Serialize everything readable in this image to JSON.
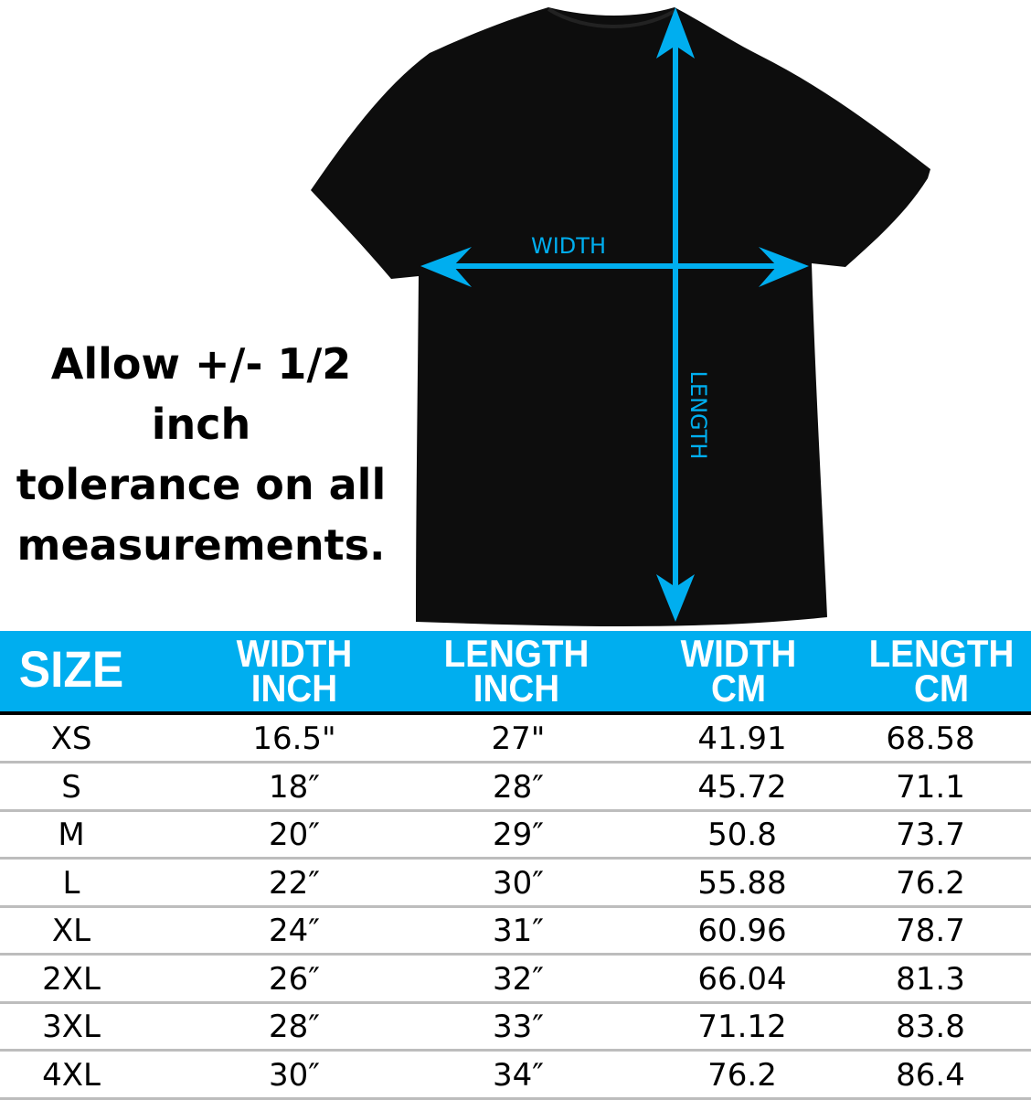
{
  "colors": {
    "accent": "#00AEEF",
    "shirt": "#0d0d0d"
  },
  "diagram": {
    "width_label": "WIDTH",
    "length_label": "LENGTH"
  },
  "note": {
    "lines": [
      "Allow +/- 1/2 inch",
      "tolerance on all",
      "measurements."
    ]
  },
  "table": {
    "headers": [
      [
        "SIZE"
      ],
      [
        "WIDTH",
        "INCH"
      ],
      [
        "LENGTH",
        "INCH"
      ],
      [
        "WIDTH",
        "CM"
      ],
      [
        "LENGTH",
        "CM"
      ]
    ],
    "rows": [
      [
        "XS",
        "16.5\"",
        "27\"",
        "41.91",
        "68.58"
      ],
      [
        "S",
        "18″",
        "28″",
        "45.72",
        "71.1"
      ],
      [
        "M",
        "20″",
        "29″",
        "50.8",
        "73.7"
      ],
      [
        "L",
        "22″",
        "30″",
        "55.88",
        "76.2"
      ],
      [
        "XL",
        "24″",
        "31″",
        "60.96",
        "78.7"
      ],
      [
        "2XL",
        "26″",
        "32″",
        "66.04",
        "81.3"
      ],
      [
        "3XL",
        "28″",
        "33″",
        "71.12",
        "83.8"
      ],
      [
        "4XL",
        "30″",
        "34″",
        "76.2",
        "86.4"
      ]
    ]
  }
}
